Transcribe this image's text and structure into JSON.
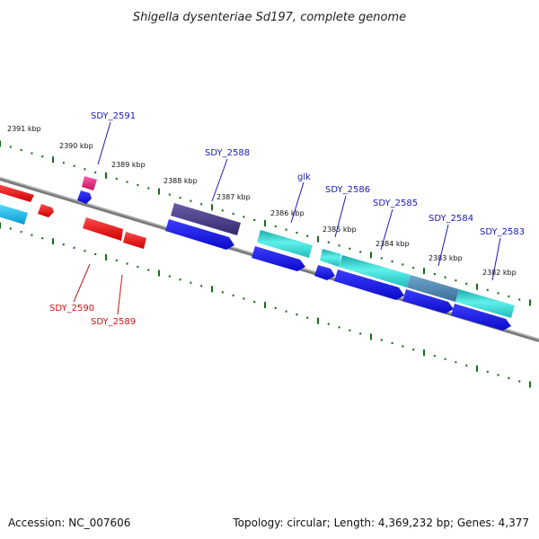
{
  "title": "Shigella dysenteriae Sd197, complete genome",
  "footer": {
    "accession": "Accession: NC_007606",
    "topology": "Topology: circular; Length: 4,369,232 bp; Genes: 4,377"
  },
  "colors": {
    "backbone": "#7d7d7d",
    "ticks": "#157015",
    "forward_label": "#1a1ab8",
    "reverse_label": "#cc1111",
    "cds_blue": "#1010e6",
    "cds_red": "#ee1111",
    "cds_teal": "#25cccc",
    "cds_purple": "#4a3e8e",
    "cds_pink": "#e0207a",
    "cds_cyan": "#12b6e6",
    "cds_steel": "#4e86b0"
  },
  "kbp_labels": [
    "2391 kbp",
    "2390 kbp",
    "2389 kbp",
    "2388 kbp",
    "2387 kbp",
    "2386 kbp",
    "2385 kbp",
    "2384 kbp",
    "2383 kbp",
    "2382 kbp"
  ],
  "gene_labels": {
    "forward": [
      "SDY_2591",
      "SDY_2588",
      "glk",
      "SDY_2586",
      "SDY_2585",
      "SDY_2584",
      "SDY_2583"
    ],
    "reverse": [
      "SDY_2590",
      "SDY_2589"
    ]
  }
}
